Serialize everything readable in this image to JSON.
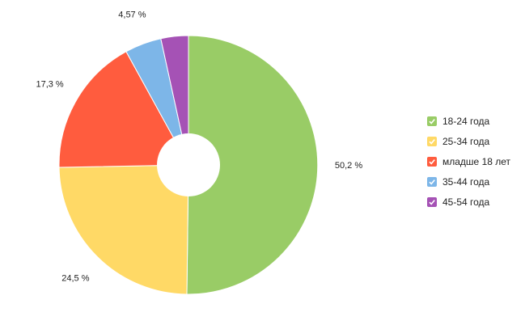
{
  "chart_data": {
    "type": "pie",
    "donut": true,
    "legend_position": "right",
    "categories": [
      "18-24 года",
      "25-34 года",
      "младше 18 лет",
      "35-44 года",
      "45-54 года"
    ],
    "values": [
      50.2,
      24.5,
      17.3,
      4.57,
      3.43
    ],
    "labels": [
      "50,2 %",
      "24,5 %",
      "17,3 %",
      "4,57 %",
      ""
    ],
    "colors": [
      "#99cc66",
      "#ffd966",
      "#ff5c3e",
      "#7db6e8",
      "#a552b5"
    ]
  },
  "legend": {
    "items": [
      {
        "label": "18-24 года",
        "color": "#99cc66"
      },
      {
        "label": "25-34 года",
        "color": "#ffd966"
      },
      {
        "label": "младше 18 лет",
        "color": "#ff5c3e"
      },
      {
        "label": "35-44 года",
        "color": "#7db6e8"
      },
      {
        "label": "45-54 года",
        "color": "#a552b5"
      }
    ]
  }
}
